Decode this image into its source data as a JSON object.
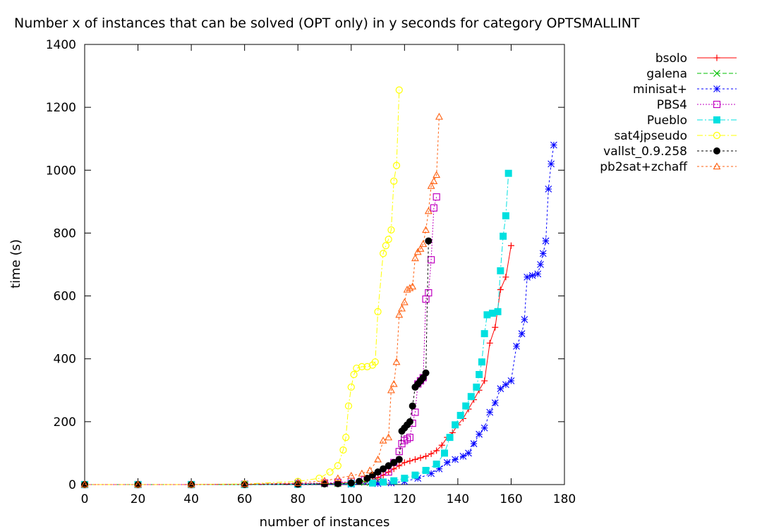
{
  "chart_data": {
    "type": "line",
    "title": "Number x of instances that can be solved (OPT only) in y seconds for category OPTSMALLINT",
    "xlabel": "number of instances",
    "ylabel": "time (s)",
    "xlim": [
      0,
      180
    ],
    "ylim": [
      0,
      1400
    ],
    "x_ticks": [
      "0",
      "20",
      "40",
      "60",
      "80",
      "100",
      "120",
      "140",
      "160",
      "180"
    ],
    "y_ticks": [
      "0",
      "200",
      "400",
      "600",
      "800",
      "1000",
      "1200",
      "1400"
    ],
    "grid": false,
    "legend_position": "top-right-outside",
    "series": [
      {
        "name": "bsolo",
        "color": "#ff0000",
        "marker": "plus",
        "dash": "",
        "points": [
          [
            0,
            0
          ],
          [
            20,
            0
          ],
          [
            40,
            0
          ],
          [
            60,
            1
          ],
          [
            80,
            2
          ],
          [
            90,
            3
          ],
          [
            95,
            4
          ],
          [
            100,
            6
          ],
          [
            105,
            10
          ],
          [
            108,
            15
          ],
          [
            110,
            22
          ],
          [
            112,
            30
          ],
          [
            114,
            40
          ],
          [
            116,
            50
          ],
          [
            118,
            60
          ],
          [
            120,
            70
          ],
          [
            122,
            75
          ],
          [
            124,
            80
          ],
          [
            126,
            85
          ],
          [
            128,
            90
          ],
          [
            130,
            98
          ],
          [
            132,
            108
          ],
          [
            134,
            125
          ],
          [
            136,
            150
          ],
          [
            138,
            165
          ],
          [
            140,
            190
          ],
          [
            142,
            210
          ],
          [
            144,
            240
          ],
          [
            146,
            270
          ],
          [
            148,
            300
          ],
          [
            150,
            330
          ],
          [
            152,
            450
          ],
          [
            154,
            500
          ],
          [
            156,
            620
          ],
          [
            158,
            660
          ],
          [
            160,
            760
          ]
        ]
      },
      {
        "name": "galena",
        "color": "#00c000",
        "marker": "x",
        "dash": "6,3",
        "points": [
          [
            0,
            0
          ],
          [
            20,
            0
          ],
          [
            40,
            0
          ],
          [
            60,
            0
          ],
          [
            80,
            1
          ],
          [
            90,
            2
          ],
          [
            95,
            3
          ],
          [
            100,
            4
          ],
          [
            105,
            7
          ],
          [
            110,
            12
          ]
        ]
      },
      {
        "name": "minisat+",
        "color": "#0000ff",
        "marker": "star",
        "dash": "3,3",
        "points": [
          [
            0,
            0
          ],
          [
            20,
            0
          ],
          [
            40,
            0
          ],
          [
            60,
            0
          ],
          [
            80,
            0
          ],
          [
            100,
            1
          ],
          [
            110,
            3
          ],
          [
            115,
            5
          ],
          [
            120,
            10
          ],
          [
            125,
            20
          ],
          [
            130,
            35
          ],
          [
            133,
            50
          ],
          [
            136,
            70
          ],
          [
            139,
            80
          ],
          [
            142,
            90
          ],
          [
            144,
            100
          ],
          [
            146,
            130
          ],
          [
            148,
            160
          ],
          [
            150,
            180
          ],
          [
            152,
            230
          ],
          [
            154,
            260
          ],
          [
            156,
            305
          ],
          [
            158,
            318
          ],
          [
            160,
            330
          ],
          [
            162,
            440
          ],
          [
            164,
            480
          ],
          [
            165,
            525
          ],
          [
            166,
            660
          ],
          [
            168,
            665
          ],
          [
            170,
            670
          ],
          [
            171,
            700
          ],
          [
            172,
            735
          ],
          [
            173,
            775
          ],
          [
            174,
            940
          ],
          [
            175,
            1020
          ],
          [
            176,
            1080
          ]
        ]
      },
      {
        "name": "PBS4",
        "color": "#c000c0",
        "marker": "square",
        "dash": "2,2",
        "points": [
          [
            0,
            0
          ],
          [
            20,
            0
          ],
          [
            40,
            0
          ],
          [
            60,
            1
          ],
          [
            80,
            3
          ],
          [
            90,
            5
          ],
          [
            95,
            7
          ],
          [
            100,
            10
          ],
          [
            105,
            15
          ],
          [
            110,
            25
          ],
          [
            114,
            40
          ],
          [
            116,
            70
          ],
          [
            118,
            105
          ],
          [
            119,
            130
          ],
          [
            120,
            140
          ],
          [
            121,
            145
          ],
          [
            122,
            150
          ],
          [
            123,
            195
          ],
          [
            124,
            230
          ],
          [
            125,
            320
          ],
          [
            126,
            330
          ],
          [
            127,
            340
          ],
          [
            128,
            590
          ],
          [
            129,
            610
          ],
          [
            130,
            715
          ],
          [
            131,
            880
          ],
          [
            132,
            915
          ]
        ]
      },
      {
        "name": "Pueblo",
        "color": "#00e0e0",
        "marker": "filled-square",
        "dash": "8,3,2,3",
        "points": [
          [
            0,
            0
          ],
          [
            20,
            0
          ],
          [
            40,
            0
          ],
          [
            60,
            0
          ],
          [
            80,
            1
          ],
          [
            100,
            3
          ],
          [
            108,
            5
          ],
          [
            112,
            8
          ],
          [
            116,
            12
          ],
          [
            120,
            20
          ],
          [
            124,
            30
          ],
          [
            128,
            45
          ],
          [
            132,
            65
          ],
          [
            135,
            100
          ],
          [
            137,
            150
          ],
          [
            139,
            190
          ],
          [
            141,
            220
          ],
          [
            143,
            250
          ],
          [
            145,
            280
          ],
          [
            147,
            310
          ],
          [
            148,
            350
          ],
          [
            149,
            390
          ],
          [
            150,
            480
          ],
          [
            151,
            540
          ],
          [
            153,
            545
          ],
          [
            155,
            550
          ],
          [
            156,
            680
          ],
          [
            157,
            790
          ],
          [
            158,
            855
          ],
          [
            159,
            990
          ]
        ]
      },
      {
        "name": "sat4jpseudo",
        "color": "#ffff00",
        "marker": "circle",
        "dash": "8,3,2,3",
        "points": [
          [
            0,
            0
          ],
          [
            20,
            0
          ],
          [
            40,
            0
          ],
          [
            60,
            2
          ],
          [
            80,
            10
          ],
          [
            88,
            20
          ],
          [
            92,
            40
          ],
          [
            95,
            60
          ],
          [
            97,
            110
          ],
          [
            98,
            150
          ],
          [
            99,
            250
          ],
          [
            100,
            310
          ],
          [
            101,
            350
          ],
          [
            102,
            370
          ],
          [
            104,
            375
          ],
          [
            106,
            375
          ],
          [
            108,
            380
          ],
          [
            109,
            390
          ],
          [
            110,
            550
          ],
          [
            112,
            735
          ],
          [
            113,
            760
          ],
          [
            114,
            780
          ],
          [
            115,
            810
          ],
          [
            116,
            965
          ],
          [
            117,
            1015
          ],
          [
            118,
            1255
          ]
        ]
      },
      {
        "name": "vallst_0.9.258",
        "color": "#000000",
        "marker": "filled-circle",
        "dash": "3,3",
        "points": [
          [
            0,
            0
          ],
          [
            20,
            0
          ],
          [
            40,
            0
          ],
          [
            60,
            0
          ],
          [
            80,
            1
          ],
          [
            90,
            2
          ],
          [
            95,
            3
          ],
          [
            100,
            5
          ],
          [
            103,
            10
          ],
          [
            106,
            20
          ],
          [
            108,
            30
          ],
          [
            110,
            40
          ],
          [
            112,
            50
          ],
          [
            114,
            60
          ],
          [
            116,
            70
          ],
          [
            118,
            80
          ],
          [
            119,
            170
          ],
          [
            120,
            180
          ],
          [
            121,
            190
          ],
          [
            122,
            200
          ],
          [
            123,
            250
          ],
          [
            124,
            310
          ],
          [
            125,
            320
          ],
          [
            126,
            330
          ],
          [
            127,
            340
          ],
          [
            128,
            355
          ],
          [
            129,
            775
          ]
        ]
      },
      {
        "name": "pb2sat+zchaff",
        "color": "#ff6010",
        "marker": "triangle",
        "dash": "3,3",
        "points": [
          [
            0,
            0
          ],
          [
            20,
            0
          ],
          [
            40,
            0
          ],
          [
            60,
            1
          ],
          [
            80,
            5
          ],
          [
            90,
            12
          ],
          [
            95,
            20
          ],
          [
            100,
            28
          ],
          [
            104,
            35
          ],
          [
            107,
            45
          ],
          [
            110,
            80
          ],
          [
            112,
            140
          ],
          [
            114,
            150
          ],
          [
            115,
            300
          ],
          [
            116,
            320
          ],
          [
            117,
            390
          ],
          [
            118,
            540
          ],
          [
            119,
            560
          ],
          [
            120,
            580
          ],
          [
            121,
            620
          ],
          [
            122,
            625
          ],
          [
            123,
            630
          ],
          [
            124,
            720
          ],
          [
            125,
            740
          ],
          [
            126,
            750
          ],
          [
            127,
            765
          ],
          [
            128,
            810
          ],
          [
            129,
            870
          ],
          [
            130,
            950
          ],
          [
            131,
            965
          ],
          [
            132,
            985
          ],
          [
            133,
            1170
          ]
        ]
      }
    ]
  }
}
